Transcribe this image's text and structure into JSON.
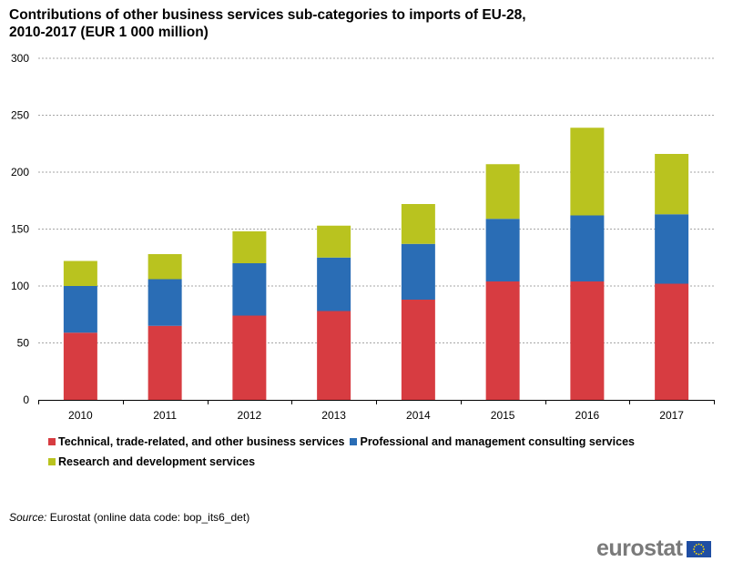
{
  "title_line1": "Contributions of other business services sub-categories to imports of EU-28,",
  "title_line2": "2010-2017 (EUR 1 000 million)",
  "source_label": "Source:",
  "source_text": "Eurostat (online data code: bop_its6_det)",
  "logo_text": "eurostat",
  "chart_data": {
    "type": "bar",
    "stacked": true,
    "categories": [
      "2010",
      "2011",
      "2012",
      "2013",
      "2014",
      "2015",
      "2016",
      "2017"
    ],
    "series": [
      {
        "name": "Technical, trade-related, and other business services",
        "color": "#d73c41",
        "values": [
          59,
          65,
          74,
          78,
          88,
          104,
          104,
          102
        ]
      },
      {
        "name": "Professional and management consulting services",
        "color": "#2a6db5",
        "values": [
          41,
          41,
          46,
          47,
          49,
          55,
          58,
          61
        ]
      },
      {
        "name": "Research and development services",
        "color": "#b9c31f",
        "values": [
          22,
          22,
          28,
          28,
          35,
          48,
          77,
          53
        ]
      }
    ],
    "ylim": [
      0,
      300
    ],
    "yticks": [
      0,
      50,
      100,
      150,
      200,
      250,
      300
    ],
    "grid": true,
    "legend_position": "bottom"
  }
}
